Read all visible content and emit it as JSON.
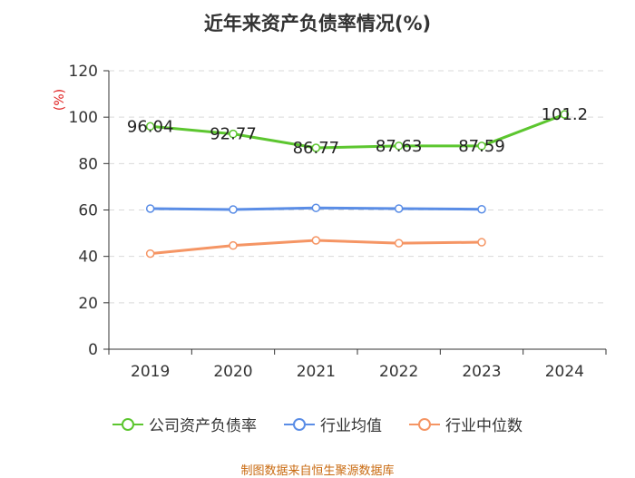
{
  "chart_data": {
    "type": "line",
    "title": "近年来资产负债率情况(%)",
    "ylabel": "(%)",
    "xlabel": "",
    "categories": [
      "2019",
      "2020",
      "2021",
      "2022",
      "2023",
      "2024"
    ],
    "ylim": [
      0,
      120
    ],
    "yticks": [
      0,
      20,
      40,
      60,
      80,
      100,
      120
    ],
    "grid": true,
    "legend_position": "bottom",
    "series": [
      {
        "name": "公司资产负债率",
        "color": "#5cc62f",
        "values": [
          96.04,
          92.77,
          86.77,
          87.63,
          87.59,
          101.2
        ],
        "labels": [
          "96.04",
          "92.77",
          "86.77",
          "87.63",
          "87.59",
          "101.2"
        ]
      },
      {
        "name": "行业均值",
        "color": "#5a8de6",
        "values": [
          60.6,
          60.2,
          60.9,
          60.6,
          60.3,
          null
        ]
      },
      {
        "name": "行业中位数",
        "color": "#f59564",
        "values": [
          41.2,
          44.7,
          46.9,
          45.7,
          46.1,
          null
        ]
      }
    ]
  },
  "footer": {
    "source": "制图数据来自恒生聚源数据库"
  }
}
